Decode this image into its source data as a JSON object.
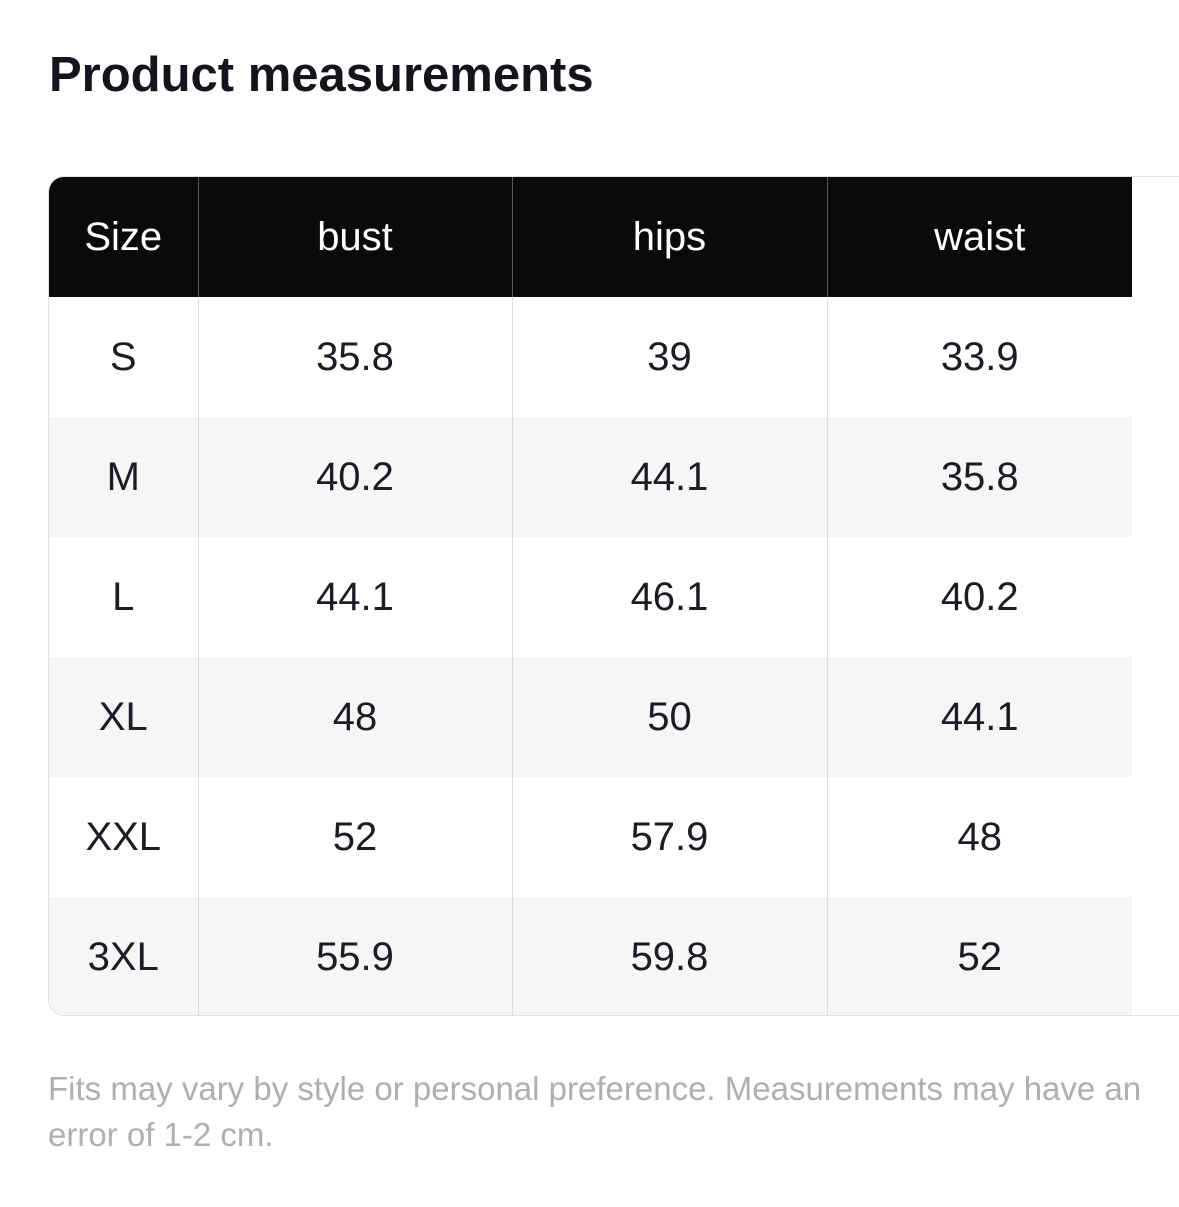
{
  "title": "Product measurements",
  "table": {
    "headers": [
      "Size",
      "bust",
      "hips",
      "waist"
    ],
    "rows": [
      [
        "S",
        "35.8",
        "39",
        "33.9"
      ],
      [
        "M",
        "40.2",
        "44.1",
        "35.8"
      ],
      [
        "L",
        "44.1",
        "46.1",
        "40.2"
      ],
      [
        "XL",
        "48",
        "50",
        "44.1"
      ],
      [
        "XXL",
        "52",
        "57.9",
        "48"
      ],
      [
        "3XL",
        "55.9",
        "59.8",
        "52"
      ]
    ]
  },
  "footnote": "Fits may vary by style or personal preference. Measurements may have an error of 1-2 cm.",
  "colors": {
    "header_bg": "#0a0a0a",
    "header_text": "#ffffff",
    "row_alt_bg": "#f6f6f6",
    "footnote_text": "#aeaeb4"
  }
}
